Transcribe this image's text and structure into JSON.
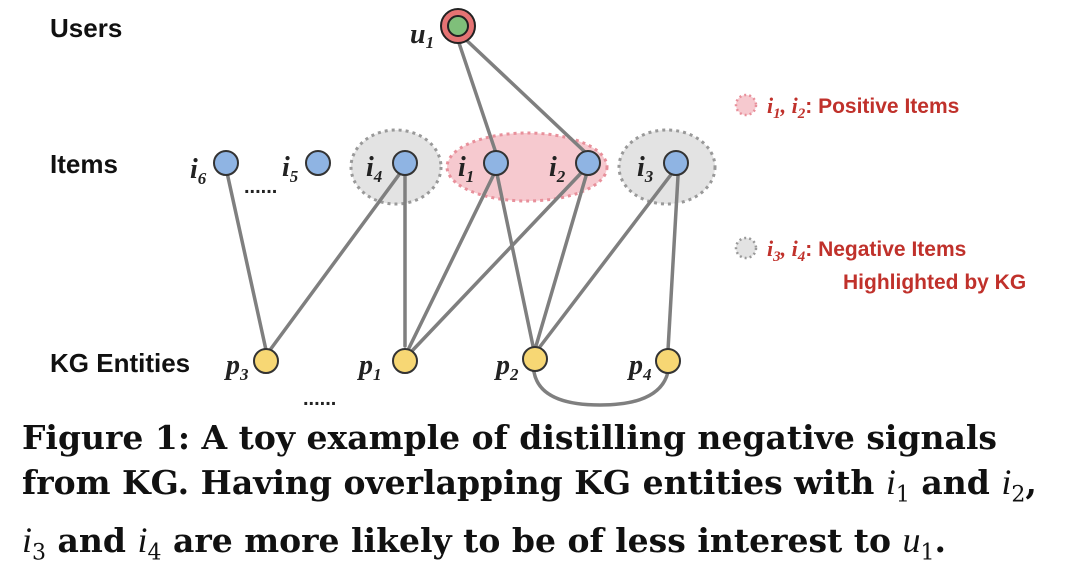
{
  "diagram": {
    "row_labels": {
      "users": "Users",
      "items": "Items",
      "kg_entities": "KG Entities"
    },
    "nodes": {
      "user": {
        "base": "u",
        "sub": "1"
      },
      "items": [
        {
          "id": "i6",
          "base": "i",
          "sub": "6"
        },
        {
          "id": "i5",
          "base": "i",
          "sub": "5"
        },
        {
          "id": "i4",
          "base": "i",
          "sub": "4"
        },
        {
          "id": "i1",
          "base": "i",
          "sub": "1"
        },
        {
          "id": "i2",
          "base": "i",
          "sub": "2"
        },
        {
          "id": "i3",
          "base": "i",
          "sub": "3"
        }
      ],
      "entities": [
        {
          "id": "p3",
          "base": "p",
          "sub": "3"
        },
        {
          "id": "p1",
          "base": "p",
          "sub": "1"
        },
        {
          "id": "p2",
          "base": "p",
          "sub": "2"
        },
        {
          "id": "p4",
          "base": "p",
          "sub": "4"
        }
      ]
    },
    "ellipsis_items": "......",
    "ellipsis_entities": "......",
    "edges": [
      [
        "u1",
        "i1"
      ],
      [
        "u1",
        "i2"
      ],
      [
        "i6",
        "p3"
      ],
      [
        "i4",
        "p3"
      ],
      [
        "i4",
        "p1"
      ],
      [
        "i1",
        "p1"
      ],
      [
        "i1",
        "p2"
      ],
      [
        "i2",
        "p1"
      ],
      [
        "i2",
        "p2"
      ],
      [
        "i3",
        "p2"
      ],
      [
        "i3",
        "p4"
      ],
      [
        "p2",
        "p4"
      ]
    ],
    "legend": {
      "positive": {
        "i1": "i",
        "i1_sub": "1",
        "sep": ", ",
        "i2": "i",
        "i2_sub": "2",
        "text": ": Positive Items"
      },
      "negative": {
        "i3": "i",
        "i3_sub": "3",
        "sep": ", ",
        "i4": "i",
        "i4_sub": "4",
        "text": ": Negative Items",
        "text2": "Highlighted by KG"
      }
    },
    "colors": {
      "item_node": "#8fb4e3",
      "entity_node": "#f7d774",
      "user_node": "#7fbf7a",
      "user_ring": "#e57373",
      "positive_fill": "#f6c9cf",
      "negative_fill": "#e3e3e3",
      "edge": "#7f7f7f",
      "legend_text": "#c0312b"
    }
  },
  "caption": {
    "prefix": "Figure 1: A toy example of distilling negative signals from KG. Having overlapping KG entities with ",
    "m1": "i",
    "m1_sub": "1",
    "and1": " and ",
    "m2": "i",
    "m2_sub": "2",
    "comma": ", ",
    "m3": "i",
    "m3_sub": "3",
    "and2": " and ",
    "m4": "i",
    "m4_sub": "4",
    "mid": " are more likely to be of less interest to ",
    "m5": "u",
    "m5_sub": "1",
    "end": "."
  }
}
